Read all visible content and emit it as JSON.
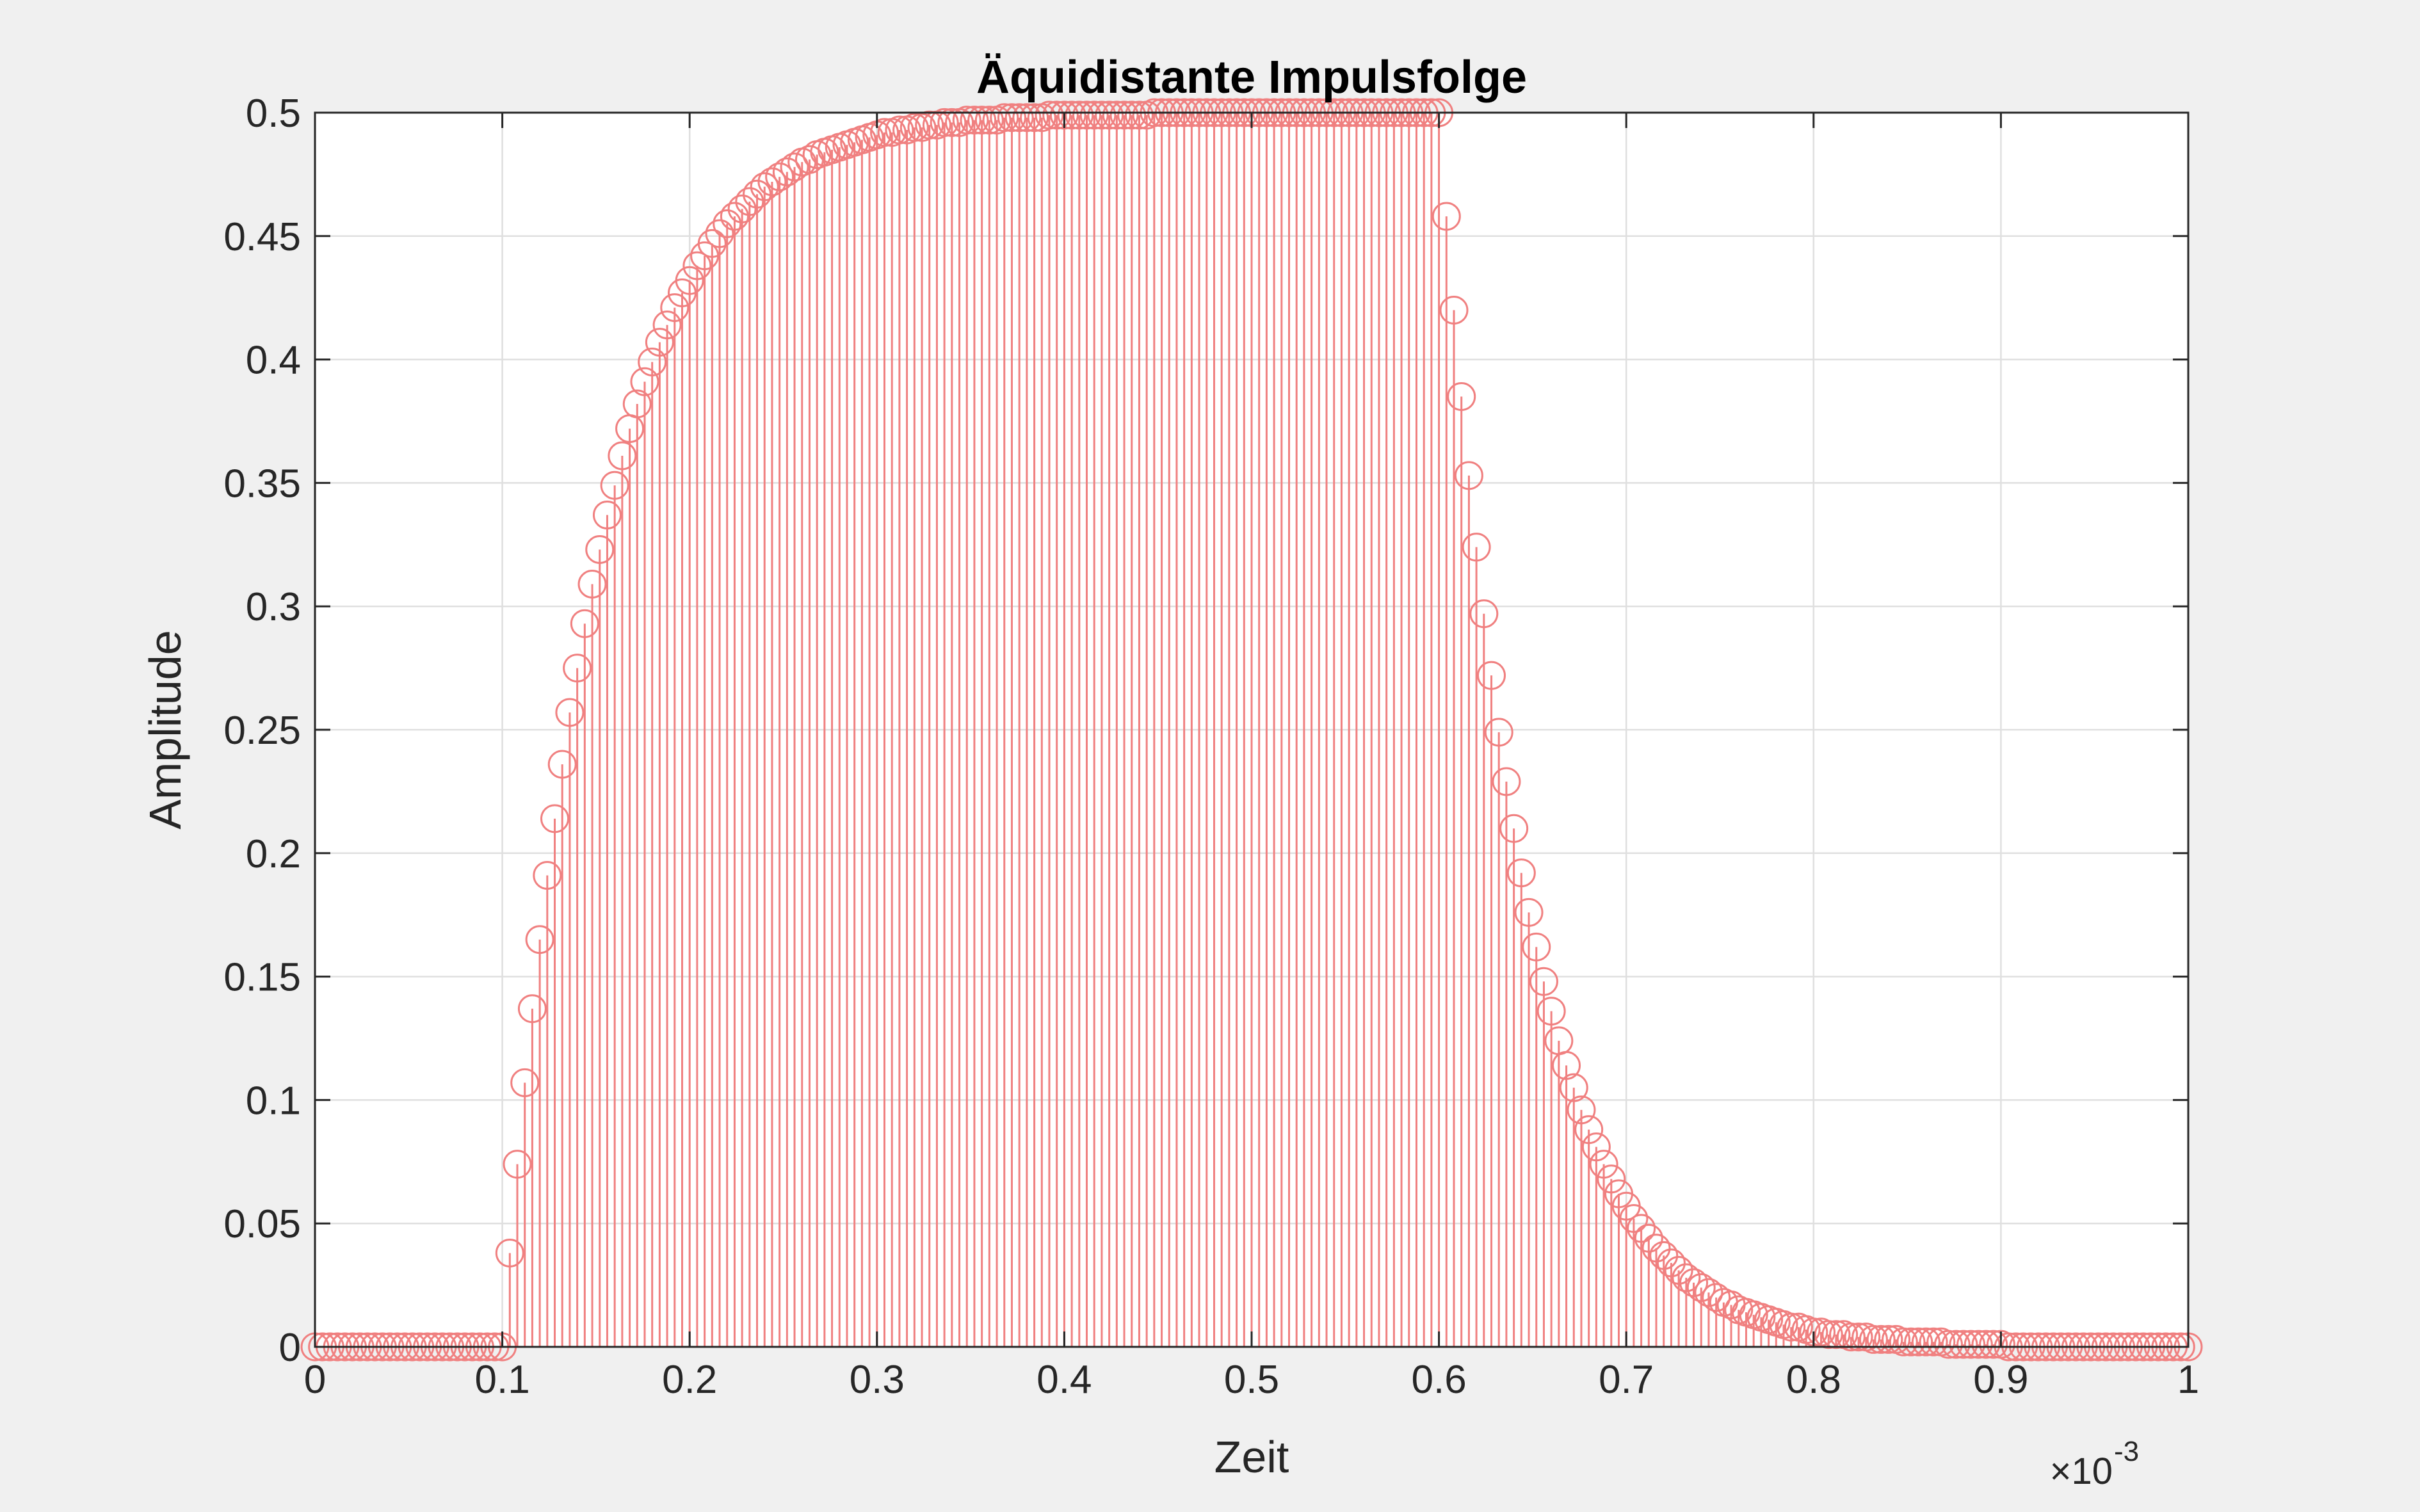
{
  "chart_data": {
    "type": "stem",
    "title": "Äquidistante Impulsfolge",
    "xlabel": "Zeit",
    "ylabel": "Amplitude",
    "x_multiplier": {
      "base": "×10",
      "exponent": "-3"
    },
    "color": "#f08080",
    "grid": true,
    "xlim": [
      0,
      1
    ],
    "ylim": [
      0,
      0.5
    ],
    "xticks": [
      0,
      0.1,
      0.2,
      0.3,
      0.4,
      0.5,
      0.6,
      0.7,
      0.8,
      0.9,
      1
    ],
    "yticks": [
      0,
      0.05,
      0.1,
      0.15,
      0.2,
      0.25,
      0.3,
      0.35,
      0.4,
      0.45,
      0.5
    ],
    "x": [
      0,
      0.004,
      0.008,
      0.012,
      0.016,
      0.02,
      0.024,
      0.028,
      0.032,
      0.036,
      0.04,
      0.044,
      0.048,
      0.052,
      0.056,
      0.06,
      0.064,
      0.068,
      0.072,
      0.076,
      0.08,
      0.084,
      0.088,
      0.092,
      0.096,
      0.1,
      0.104,
      0.108,
      0.112,
      0.116,
      0.12,
      0.124,
      0.128,
      0.132,
      0.136,
      0.14,
      0.144,
      0.148,
      0.152,
      0.156,
      0.16,
      0.164,
      0.168,
      0.172,
      0.176,
      0.18,
      0.184,
      0.188,
      0.192,
      0.196,
      0.2,
      0.204,
      0.208,
      0.212,
      0.216,
      0.22,
      0.224,
      0.228,
      0.232,
      0.236,
      0.24,
      0.244,
      0.248,
      0.252,
      0.256,
      0.26,
      0.264,
      0.268,
      0.272,
      0.276,
      0.28,
      0.284,
      0.288,
      0.292,
      0.296,
      0.3,
      0.304,
      0.308,
      0.312,
      0.316,
      0.32,
      0.324,
      0.328,
      0.332,
      0.336,
      0.34,
      0.344,
      0.348,
      0.352,
      0.356,
      0.36,
      0.364,
      0.368,
      0.372,
      0.376,
      0.38,
      0.384,
      0.388,
      0.392,
      0.396,
      0.4,
      0.404,
      0.408,
      0.412,
      0.416,
      0.42,
      0.424,
      0.428,
      0.432,
      0.436,
      0.44,
      0.444,
      0.448,
      0.452,
      0.456,
      0.46,
      0.464,
      0.468,
      0.472,
      0.476,
      0.48,
      0.484,
      0.488,
      0.492,
      0.496,
      0.5,
      0.504,
      0.508,
      0.512,
      0.516,
      0.52,
      0.524,
      0.528,
      0.532,
      0.536,
      0.54,
      0.544,
      0.548,
      0.552,
      0.556,
      0.56,
      0.564,
      0.568,
      0.572,
      0.576,
      0.58,
      0.584,
      0.588,
      0.592,
      0.596,
      0.6,
      0.604,
      0.608,
      0.612,
      0.616,
      0.62,
      0.624,
      0.628,
      0.632,
      0.636,
      0.64,
      0.644,
      0.648,
      0.652,
      0.656,
      0.66,
      0.664,
      0.668,
      0.672,
      0.676,
      0.68,
      0.684,
      0.688,
      0.692,
      0.696,
      0.7,
      0.704,
      0.708,
      0.712,
      0.716,
      0.72,
      0.724,
      0.728,
      0.732,
      0.736,
      0.74,
      0.744,
      0.748,
      0.752,
      0.756,
      0.76,
      0.764,
      0.768,
      0.772,
      0.776,
      0.78,
      0.784,
      0.788,
      0.792,
      0.796,
      0.8,
      0.804,
      0.808,
      0.812,
      0.816,
      0.82,
      0.824,
      0.828,
      0.832,
      0.836,
      0.84,
      0.844,
      0.848,
      0.852,
      0.856,
      0.86,
      0.864,
      0.868,
      0.872,
      0.876,
      0.88,
      0.884,
      0.888,
      0.892,
      0.896,
      0.9,
      0.904,
      0.908,
      0.912,
      0.916,
      0.92,
      0.924,
      0.928,
      0.932,
      0.936,
      0.94,
      0.944,
      0.948,
      0.952,
      0.956,
      0.96,
      0.964,
      0.968,
      0.972,
      0.976,
      0.98,
      0.984,
      0.988,
      0.992,
      0.996,
      1
    ],
    "values": [
      0,
      0,
      0,
      0,
      0,
      0,
      0,
      0,
      0,
      0,
      0,
      0,
      0,
      0,
      0,
      0,
      0,
      0,
      0,
      0,
      0,
      0,
      0,
      0,
      0,
      0,
      0.038,
      0.074,
      0.107,
      0.137,
      0.165,
      0.191,
      0.214,
      0.236,
      0.257,
      0.275,
      0.293,
      0.309,
      0.323,
      0.337,
      0.349,
      0.361,
      0.372,
      0.382,
      0.391,
      0.399,
      0.407,
      0.414,
      0.421,
      0.427,
      0.432,
      0.438,
      0.442,
      0.447,
      0.451,
      0.455,
      0.458,
      0.461,
      0.464,
      0.467,
      0.47,
      0.472,
      0.474,
      0.476,
      0.478,
      0.48,
      0.481,
      0.483,
      0.484,
      0.485,
      0.486,
      0.487,
      0.488,
      0.489,
      0.49,
      0.491,
      0.492,
      0.492,
      0.493,
      0.493,
      0.494,
      0.494,
      0.495,
      0.495,
      0.496,
      0.496,
      0.496,
      0.497,
      0.497,
      0.497,
      0.497,
      0.497,
      0.498,
      0.498,
      0.498,
      0.498,
      0.498,
      0.498,
      0.499,
      0.499,
      0.499,
      0.499,
      0.499,
      0.499,
      0.499,
      0.499,
      0.499,
      0.499,
      0.499,
      0.499,
      0.499,
      0.499,
      0.5,
      0.5,
      0.5,
      0.5,
      0.5,
      0.5,
      0.5,
      0.5,
      0.5,
      0.5,
      0.5,
      0.5,
      0.5,
      0.5,
      0.5,
      0.5,
      0.5,
      0.5,
      0.5,
      0.5,
      0.5,
      0.5,
      0.5,
      0.5,
      0.5,
      0.5,
      0.5,
      0.5,
      0.5,
      0.5,
      0.5,
      0.5,
      0.5,
      0.5,
      0.5,
      0.5,
      0.5,
      0.5,
      0.5,
      0.458,
      0.42,
      0.385,
      0.353,
      0.324,
      0.297,
      0.272,
      0.249,
      0.229,
      0.21,
      0.192,
      0.176,
      0.162,
      0.148,
      0.136,
      0.124,
      0.114,
      0.105,
      0.096,
      0.088,
      0.081,
      0.074,
      0.068,
      0.062,
      0.057,
      0.052,
      0.048,
      0.044,
      0.04,
      0.037,
      0.034,
      0.031,
      0.028,
      0.026,
      0.024,
      0.022,
      0.02,
      0.018,
      0.017,
      0.015,
      0.014,
      0.013,
      0.012,
      0.011,
      0.01,
      0.009,
      0.008,
      0.008,
      0.007,
      0.006,
      0.006,
      0.005,
      0.005,
      0.005,
      0.004,
      0.004,
      0.004,
      0.003,
      0.003,
      0.003,
      0.003,
      0.002,
      0.002,
      0.002,
      0.002,
      0.002,
      0.002,
      0.001,
      0.001,
      0.001,
      0.001,
      0.001,
      0.001,
      0.001,
      0.001,
      0,
      0,
      0,
      0,
      0,
      0,
      0,
      0,
      0,
      0,
      0,
      0,
      0,
      0,
      0,
      0,
      0,
      0,
      0,
      0,
      0,
      0,
      0,
      0,
      0
    ]
  }
}
